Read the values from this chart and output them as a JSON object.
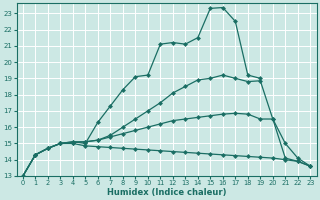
{
  "xlabel": "Humidex (Indice chaleur)",
  "bg_color": "#cce8e4",
  "grid_color": "#ffffff",
  "line_color": "#1a6e64",
  "xlim": [
    -0.5,
    23.5
  ],
  "ylim": [
    13,
    23.6
  ],
  "yticks": [
    13,
    14,
    15,
    16,
    17,
    18,
    19,
    20,
    21,
    22,
    23
  ],
  "xticks": [
    0,
    1,
    2,
    3,
    4,
    5,
    6,
    7,
    8,
    9,
    10,
    11,
    12,
    13,
    14,
    15,
    16,
    17,
    18,
    19,
    20,
    21,
    22,
    23
  ],
  "line1_x": [
    0,
    1,
    2,
    3,
    4,
    5,
    6,
    7,
    8,
    9,
    10,
    11,
    12,
    13,
    14,
    15,
    16,
    17,
    18,
    19
  ],
  "line1_y": [
    13,
    14.3,
    14.7,
    15.0,
    15.1,
    15.0,
    16.3,
    17.3,
    18.3,
    19.1,
    19.2,
    21.1,
    21.2,
    21.1,
    21.5,
    23.3,
    23.35,
    22.5,
    19.2,
    19.0
  ],
  "line2_x": [
    0,
    1,
    2,
    3,
    4,
    5,
    6,
    7,
    8,
    9,
    10,
    11,
    12,
    13,
    14,
    15,
    16,
    17,
    18,
    19,
    20,
    21,
    22,
    23
  ],
  "line2_y": [
    13,
    14.3,
    14.7,
    15.0,
    15.1,
    15.1,
    15.2,
    15.5,
    16.0,
    16.5,
    17.0,
    17.5,
    18.1,
    18.5,
    18.9,
    19.0,
    19.2,
    19.0,
    18.8,
    18.85,
    16.5,
    14.1,
    13.9,
    13.6
  ],
  "line3_x": [
    0,
    1,
    2,
    3,
    4,
    5,
    6,
    7,
    8,
    9,
    10,
    11,
    12,
    13,
    14,
    15,
    16,
    17,
    18,
    19,
    20,
    21,
    22,
    23
  ],
  "line3_y": [
    13,
    14.3,
    14.7,
    15.0,
    15.05,
    15.1,
    15.2,
    15.4,
    15.6,
    15.8,
    16.0,
    16.2,
    16.4,
    16.5,
    16.6,
    16.7,
    16.8,
    16.85,
    16.8,
    16.5,
    16.5,
    15.0,
    14.1,
    13.6
  ],
  "line4_x": [
    0,
    1,
    2,
    3,
    4,
    5,
    6,
    7,
    8,
    9,
    10,
    11,
    12,
    13,
    14,
    15,
    16,
    17,
    18,
    19,
    20,
    21,
    22,
    23
  ],
  "line4_y": [
    13,
    14.3,
    14.7,
    15.0,
    15.0,
    14.85,
    14.8,
    14.75,
    14.7,
    14.65,
    14.6,
    14.55,
    14.5,
    14.45,
    14.4,
    14.35,
    14.3,
    14.25,
    14.2,
    14.15,
    14.1,
    14.0,
    13.9,
    13.6
  ],
  "markersize": 2.5,
  "linewidth": 0.9
}
